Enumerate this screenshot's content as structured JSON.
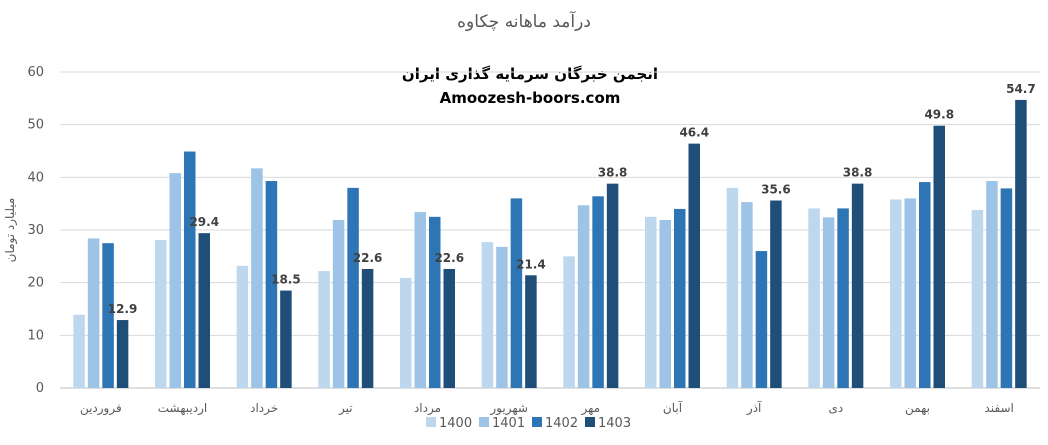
{
  "chart_data": {
    "type": "bar",
    "title": "درآمد ماهانه چکاوه",
    "ylabel": "میلیارد تومان",
    "xlabel": "",
    "ylim": [
      0,
      60
    ],
    "yticks": [
      0,
      10,
      20,
      30,
      40,
      50,
      60
    ],
    "grid": true,
    "legend_position": "bottom",
    "categories": [
      "فروردین",
      "اردیبهشت",
      "خرداد",
      "تیر",
      "مرداد",
      "شهریور",
      "مهر",
      "آبان",
      "آذر",
      "دی",
      "بهمن",
      "اسفند"
    ],
    "series": [
      {
        "name": "1400",
        "color": "#BDD7EE",
        "values": [
          13.9,
          28.1,
          23.2,
          22.2,
          20.9,
          27.7,
          25.0,
          32.5,
          38.0,
          34.1,
          35.8,
          33.8
        ],
        "labels": [
          false,
          false,
          false,
          false,
          false,
          false,
          false,
          false,
          false,
          false,
          false,
          false
        ]
      },
      {
        "name": "1401",
        "color": "#9DC3E6",
        "values": [
          28.4,
          40.8,
          41.7,
          31.9,
          33.4,
          26.8,
          34.7,
          31.9,
          35.3,
          32.4,
          36.0,
          39.3
        ],
        "labels": [
          false,
          false,
          false,
          false,
          false,
          false,
          false,
          false,
          false,
          false,
          false,
          false
        ]
      },
      {
        "name": "1402",
        "color": "#2E75B6",
        "values": [
          27.5,
          44.9,
          39.3,
          38.0,
          32.5,
          36.0,
          36.4,
          34.0,
          26.0,
          34.1,
          39.1,
          37.9
        ],
        "labels": [
          false,
          false,
          false,
          false,
          false,
          false,
          false,
          false,
          false,
          false,
          false,
          false
        ]
      },
      {
        "name": "1403",
        "color": "#1F4E79",
        "values": [
          12.9,
          29.4,
          18.5,
          22.6,
          22.6,
          21.4,
          38.8,
          46.4,
          35.6,
          38.8,
          49.8,
          54.7
        ],
        "labels": [
          true,
          true,
          true,
          true,
          true,
          true,
          true,
          true,
          true,
          true,
          true,
          true
        ]
      }
    ],
    "annotations": [
      "انجمن خبرگان سرمایه گذاری ایران",
      "Amoozesh-boors.com"
    ]
  }
}
